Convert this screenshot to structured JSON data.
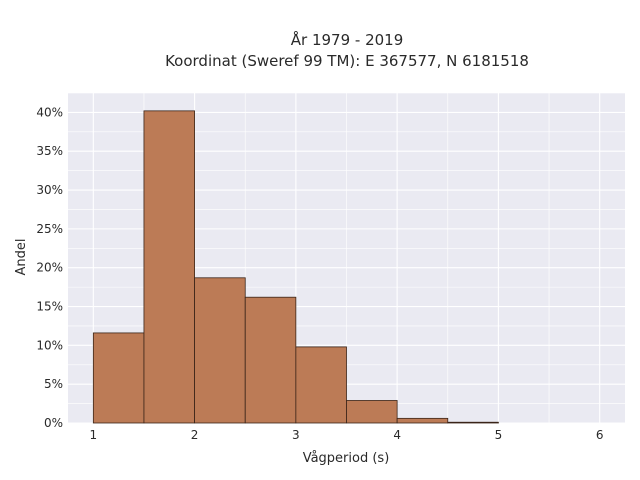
{
  "chart_data": {
    "type": "bar",
    "title": "År 1979 - 2019",
    "subtitle": "Koordinat (Sweref 99 TM): E 367577, N 6181518",
    "xlabel": "Vågperiod (s)",
    "ylabel": "Andel",
    "bin_edges": [
      1.0,
      1.5,
      2.0,
      2.5,
      3.0,
      3.5,
      4.0,
      4.5,
      5.0
    ],
    "values": [
      11.6,
      40.2,
      18.7,
      16.2,
      9.8,
      2.9,
      0.6,
      0.1
    ],
    "xlim": [
      0.75,
      6.25
    ],
    "ylim": [
      0,
      42.5
    ],
    "x_ticks": [
      1,
      2,
      3,
      4,
      5,
      6
    ],
    "y_ticks": [
      0,
      5,
      10,
      15,
      20,
      25,
      30,
      35,
      40
    ],
    "y_tick_labels": [
      "0%",
      "5%",
      "10%",
      "15%",
      "20%",
      "25%",
      "30%",
      "35%",
      "40%"
    ],
    "grid": true,
    "bar_color": "#bc7b56",
    "edge_color": "#3a2418",
    "background_color": "#eaeaf2"
  }
}
